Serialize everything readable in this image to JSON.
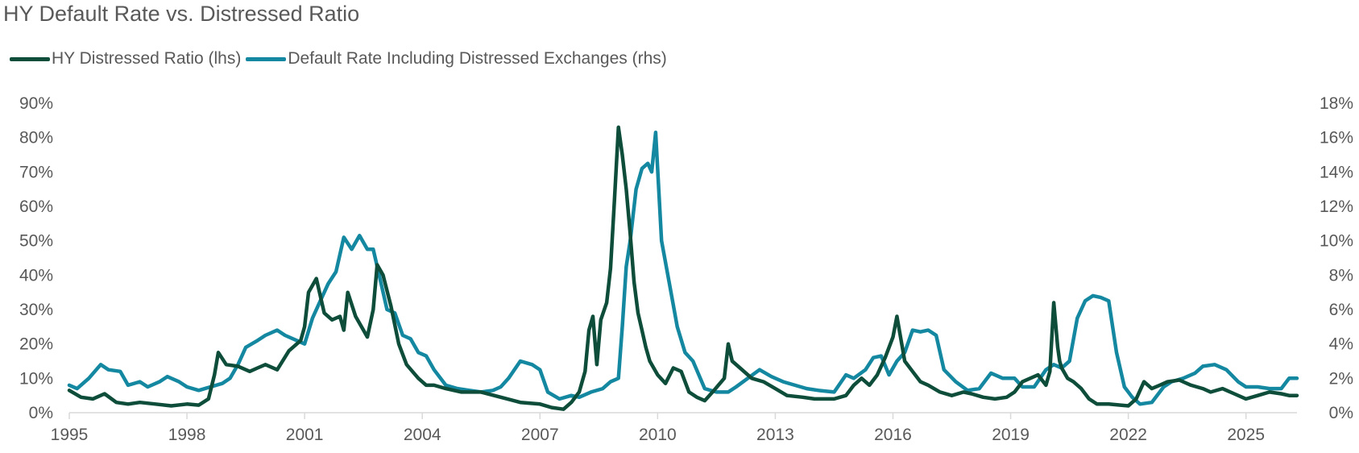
{
  "title": "HY Default Rate vs. Distressed Ratio",
  "colors": {
    "distressed": "#0e4d3a",
    "default_rate": "#1488a0",
    "axis": "#d9d9d9",
    "text": "#595959"
  },
  "chart_data": {
    "type": "line",
    "title": "HY Default Rate vs. Distressed Ratio",
    "legend": "top-left",
    "grid": false,
    "xlabel": "",
    "x_range": [
      1995,
      2026.3
    ],
    "x_ticks": [
      "1995",
      "1998",
      "2001",
      "2004",
      "2007",
      "2010",
      "2013",
      "2016",
      "2019",
      "2022",
      "2025"
    ],
    "y_left": {
      "label": "",
      "range": [
        0,
        90
      ],
      "ticks": [
        "0%",
        "10%",
        "20%",
        "30%",
        "40%",
        "50%",
        "60%",
        "70%",
        "80%",
        "90%"
      ]
    },
    "y_right": {
      "label": "",
      "range": [
        0,
        18
      ],
      "ticks": [
        "0%",
        "2%",
        "4%",
        "6%",
        "8%",
        "10%",
        "12%",
        "14%",
        "16%",
        "18%"
      ]
    },
    "series": [
      {
        "name": "HY Distressed Ratio (lhs)",
        "axis": "left",
        "x": [
          1995.0,
          1995.3,
          1995.6,
          1995.9,
          1996.2,
          1996.5,
          1996.8,
          1997.2,
          1997.6,
          1998.0,
          1998.3,
          1998.55,
          1998.7,
          1998.8,
          1999.0,
          1999.3,
          1999.6,
          1999.8,
          2000.0,
          2000.3,
          2000.6,
          2000.9,
          2001.0,
          2001.1,
          2001.3,
          2001.5,
          2001.7,
          2001.9,
          2002.0,
          2002.1,
          2002.3,
          2002.5,
          2002.6,
          2002.75,
          2002.85,
          2003.0,
          2003.2,
          2003.4,
          2003.6,
          2003.9,
          2004.1,
          2004.3,
          2004.6,
          2005.0,
          2005.5,
          2006.0,
          2006.5,
          2007.0,
          2007.3,
          2007.6,
          2007.8,
          2008.0,
          2008.15,
          2008.25,
          2008.35,
          2008.45,
          2008.55,
          2008.7,
          2008.8,
          2008.9,
          2009.0,
          2009.1,
          2009.2,
          2009.3,
          2009.4,
          2009.5,
          2009.6,
          2009.7,
          2009.8,
          2010.0,
          2010.2,
          2010.4,
          2010.6,
          2010.8,
          2011.0,
          2011.2,
          2011.4,
          2011.7,
          2011.8,
          2011.9,
          2012.1,
          2012.4,
          2012.7,
          2013.0,
          2013.3,
          2013.7,
          2014.0,
          2014.5,
          2014.8,
          2015.0,
          2015.2,
          2015.4,
          2015.6,
          2015.8,
          2016.0,
          2016.1,
          2016.3,
          2016.5,
          2016.7,
          2016.9,
          2017.2,
          2017.5,
          2017.8,
          2018.0,
          2018.3,
          2018.6,
          2018.9,
          2019.1,
          2019.3,
          2019.5,
          2019.7,
          2019.9,
          2020.0,
          2020.1,
          2020.2,
          2020.25,
          2020.3,
          2020.45,
          2020.6,
          2020.8,
          2021.0,
          2021.2,
          2021.5,
          2021.8,
          2022.0,
          2022.2,
          2022.4,
          2022.6,
          2022.8,
          2023.0,
          2023.3,
          2023.6,
          2023.9,
          2024.1,
          2024.4,
          2024.7,
          2025.0,
          2025.3,
          2025.6,
          2025.9,
          2026.1,
          2026.3
        ],
        "values": [
          6.5,
          4.5,
          4,
          5.5,
          3,
          2.5,
          3,
          2.5,
          2,
          2.5,
          2.2,
          4,
          11,
          17.5,
          14,
          13.5,
          12,
          13,
          14,
          12.5,
          18,
          21,
          25,
          35,
          39,
          29,
          27,
          28,
          24,
          35,
          28,
          24,
          22,
          30,
          43,
          40,
          31,
          20,
          14,
          10,
          8,
          8,
          7,
          6,
          6,
          4.5,
          3,
          2.5,
          1.5,
          1,
          3,
          6,
          12,
          24,
          28,
          14,
          27,
          32,
          42,
          62,
          83,
          75,
          65,
          52,
          38,
          29,
          24,
          19,
          15,
          11,
          8.5,
          13,
          12,
          6,
          4.5,
          3.5,
          6,
          10,
          20,
          15,
          13,
          10,
          9,
          7,
          5,
          4.5,
          4,
          4,
          5,
          8,
          10,
          8,
          11,
          16,
          22,
          28,
          15,
          12,
          9,
          8,
          6,
          5,
          6,
          5.5,
          4.5,
          4,
          4.5,
          6,
          9,
          10,
          11,
          8,
          12,
          32,
          19,
          15,
          13,
          10,
          9,
          7,
          4,
          2.5,
          2.5,
          2.2,
          2,
          4,
          9,
          7,
          8,
          9,
          9.5,
          8,
          7,
          6,
          7,
          5.5,
          4,
          5,
          6,
          5.5,
          5,
          5
        ]
      },
      {
        "name": "Default Rate Including Distressed Exchanges (rhs)",
        "axis": "right",
        "x": [
          1995.0,
          1995.2,
          1995.5,
          1995.8,
          1996.0,
          1996.3,
          1996.5,
          1996.8,
          1997.0,
          1997.3,
          1997.5,
          1997.8,
          1998.0,
          1998.3,
          1998.6,
          1998.9,
          1999.1,
          1999.3,
          1999.5,
          1999.8,
          2000.0,
          2000.3,
          2000.5,
          2000.8,
          2001.0,
          2001.2,
          2001.4,
          2001.6,
          2001.8,
          2002.0,
          2002.2,
          2002.4,
          2002.6,
          2002.75,
          2002.9,
          2003.1,
          2003.3,
          2003.5,
          2003.7,
          2003.9,
          2004.1,
          2004.3,
          2004.6,
          2004.9,
          2005.2,
          2005.5,
          2005.8,
          2006.0,
          2006.2,
          2006.5,
          2006.8,
          2007.0,
          2007.2,
          2007.5,
          2007.8,
          2008.0,
          2008.3,
          2008.6,
          2008.8,
          2009.0,
          2009.1,
          2009.2,
          2009.3,
          2009.45,
          2009.6,
          2009.75,
          2009.85,
          2009.95,
          2010.1,
          2010.3,
          2010.5,
          2010.7,
          2010.9,
          2011.2,
          2011.5,
          2011.8,
          2012.0,
          2012.3,
          2012.6,
          2012.9,
          2013.2,
          2013.5,
          2013.8,
          2014.1,
          2014.5,
          2014.8,
          2015.0,
          2015.3,
          2015.5,
          2015.7,
          2015.9,
          2016.1,
          2016.3,
          2016.5,
          2016.7,
          2016.9,
          2017.1,
          2017.3,
          2017.6,
          2017.9,
          2018.2,
          2018.5,
          2018.8,
          2019.1,
          2019.3,
          2019.6,
          2019.9,
          2020.1,
          2020.3,
          2020.5,
          2020.7,
          2020.9,
          2021.1,
          2021.3,
          2021.5,
          2021.7,
          2021.9,
          2022.1,
          2022.3,
          2022.6,
          2022.9,
          2023.1,
          2023.4,
          2023.7,
          2023.9,
          2024.2,
          2024.5,
          2024.8,
          2025.0,
          2025.3,
          2025.6,
          2025.9,
          2026.1,
          2026.3
        ],
        "values": [
          1.6,
          1.4,
          2,
          2.8,
          2.5,
          2.4,
          1.6,
          1.8,
          1.5,
          1.8,
          2.1,
          1.8,
          1.5,
          1.3,
          1.5,
          1.7,
          2,
          2.8,
          3.8,
          4.2,
          4.5,
          4.8,
          4.5,
          4.2,
          4,
          5.5,
          6.5,
          7.5,
          8.2,
          10.2,
          9.5,
          10.3,
          9.5,
          9.5,
          8,
          6,
          5.8,
          4.5,
          4.3,
          3.5,
          3.3,
          2.5,
          1.6,
          1.4,
          1.3,
          1.2,
          1.3,
          1.5,
          2,
          3,
          2.8,
          2.5,
          1.2,
          0.8,
          1,
          0.9,
          1.2,
          1.4,
          1.8,
          2,
          5,
          8.5,
          10,
          13,
          14.2,
          14.5,
          14,
          16.3,
          10,
          7.5,
          5,
          3.5,
          3,
          1.4,
          1.2,
          1.2,
          1.5,
          2,
          2.5,
          2.1,
          1.8,
          1.6,
          1.4,
          1.3,
          1.2,
          2.2,
          2,
          2.5,
          3.2,
          3.3,
          2.2,
          3,
          3.5,
          4.8,
          4.7,
          4.8,
          4.5,
          2.5,
          1.8,
          1.3,
          1.4,
          2.3,
          2,
          2,
          1.5,
          1.5,
          2.5,
          2.8,
          2.6,
          3,
          5.5,
          6.5,
          6.8,
          6.7,
          6.5,
          3.5,
          1.5,
          0.9,
          0.5,
          0.6,
          1.5,
          1.8,
          2,
          2.3,
          2.7,
          2.8,
          2.5,
          1.8,
          1.5,
          1.5,
          1.4,
          1.4,
          2,
          2
        ]
      }
    ]
  }
}
